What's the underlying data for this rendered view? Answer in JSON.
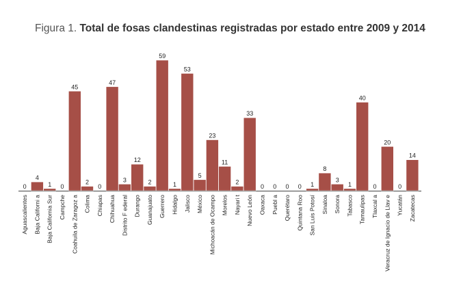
{
  "chart_data": {
    "type": "bar",
    "title_prefix": "Figura 1.",
    "title": "Total de fosas clandestinas registradas por estado entre 2009 y 2014",
    "categories": [
      "Aguascalientes",
      "Baja Californi a",
      "Baja California Sur",
      "Campche",
      "Coahuila de Zaragoz a",
      "Colima",
      "Chiapas",
      "Chihuahua",
      "Distrito F ederal",
      "Durango",
      "Guanajuato",
      "Guerrero",
      "Hidalgo",
      "Jalisco",
      "México",
      "Michoacán de Ocampo",
      "Morelos",
      "Nayari t",
      "Nuevo León",
      "Oaxaca",
      "Puebl a",
      "Querétaro",
      "Quintana Roo",
      "San Luis Potosí",
      "Sinaloa",
      "Sonora",
      "Tabasco",
      "Tamaulipas",
      "Tlaxcal a",
      "Veracruz de Ignacio de Llav e",
      "Yucatán",
      "Zacatecas"
    ],
    "values": [
      0,
      4,
      1,
      0,
      45,
      2,
      0,
      47,
      3,
      12,
      2,
      59,
      1,
      53,
      5,
      23,
      11,
      2,
      33,
      0,
      0,
      0,
      0,
      1,
      8,
      3,
      1,
      40,
      0,
      20,
      0,
      14
    ],
    "ylim": [
      0,
      59
    ],
    "grid": false,
    "colors": {
      "bar": "#a64f47"
    }
  }
}
